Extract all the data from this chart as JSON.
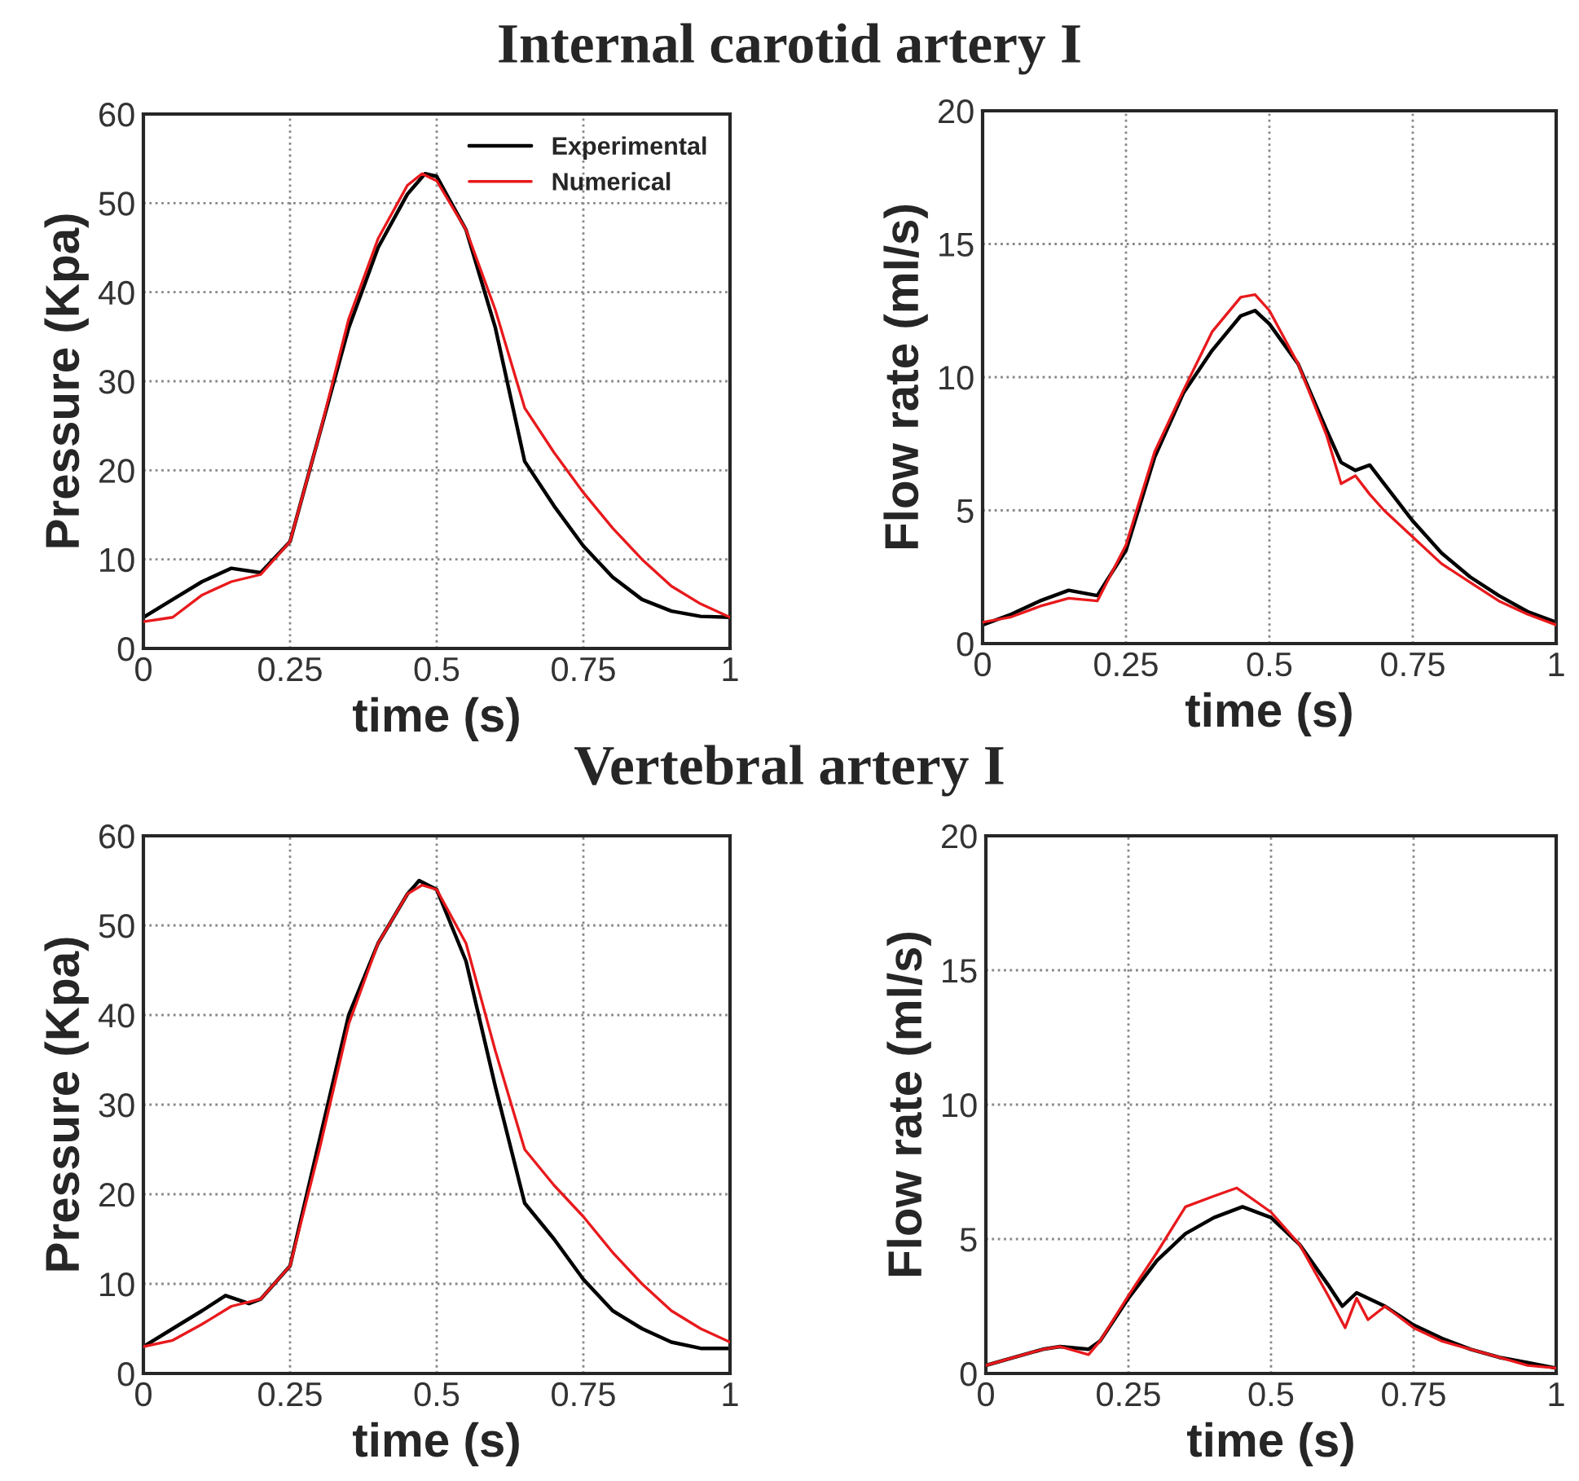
{
  "chart_data": [
    {
      "type": "line",
      "title": "Internal carotid artery I",
      "xlabel": "time (s)",
      "ylabel": "Pressure (Kpa)",
      "xlim": [
        0,
        1
      ],
      "xticks": [
        0,
        0.25,
        0.5,
        0.75,
        1
      ],
      "ylim": [
        0,
        60
      ],
      "yticks": [
        0,
        10,
        20,
        30,
        40,
        50,
        60
      ],
      "grid": true,
      "legend": "top right",
      "line_style": "solid",
      "series": [
        {
          "name": "Experimental",
          "color": "#000000",
          "x": [
            0,
            0.05,
            0.1,
            0.15,
            0.2,
            0.25,
            0.3,
            0.35,
            0.4,
            0.45,
            0.48,
            0.5,
            0.55,
            0.6,
            0.65,
            0.7,
            0.75,
            0.8,
            0.85,
            0.9,
            0.95,
            1
          ],
          "values": [
            3.5,
            5.5,
            7.5,
            9,
            8.5,
            12,
            24,
            36,
            45,
            51,
            53.3,
            53,
            47,
            36,
            21,
            16,
            11.5,
            8,
            5.5,
            4.2,
            3.6,
            3.5
          ]
        },
        {
          "name": "Numerical",
          "color": "#e8191c",
          "x": [
            0,
            0.05,
            0.1,
            0.15,
            0.2,
            0.25,
            0.3,
            0.35,
            0.4,
            0.45,
            0.475,
            0.5,
            0.55,
            0.6,
            0.65,
            0.7,
            0.75,
            0.8,
            0.85,
            0.9,
            0.95,
            1
          ],
          "values": [
            3,
            3.5,
            6,
            7.5,
            8.3,
            12,
            24,
            37,
            46,
            52,
            53.3,
            52.5,
            47,
            38,
            27,
            22,
            17.5,
            13.5,
            10,
            7,
            5,
            3.5
          ]
        }
      ]
    },
    {
      "type": "line",
      "xlabel": "time (s)",
      "ylabel": "Flow rate (ml/s)",
      "xlim": [
        0,
        1
      ],
      "xticks": [
        0,
        0.25,
        0.5,
        0.75,
        1
      ],
      "ylim": [
        0,
        20
      ],
      "yticks": [
        0,
        5,
        10,
        15,
        20
      ],
      "grid": true,
      "line_style": "solid",
      "series": [
        {
          "color": "#000000",
          "x": [
            0,
            0.05,
            0.1,
            0.15,
            0.2,
            0.25,
            0.3,
            0.35,
            0.4,
            0.45,
            0.475,
            0.5,
            0.55,
            0.6,
            0.625,
            0.65,
            0.675,
            0.7,
            0.75,
            0.8,
            0.85,
            0.9,
            0.95,
            1
          ],
          "values": [
            0.7,
            1.1,
            1.6,
            2.0,
            1.8,
            3.5,
            7,
            9.4,
            11,
            12.3,
            12.5,
            12.0,
            10.5,
            8,
            6.8,
            6.5,
            6.7,
            6,
            4.6,
            3.4,
            2.5,
            1.8,
            1.2,
            0.8
          ]
        },
        {
          "color": "#e8191c",
          "x": [
            0,
            0.05,
            0.1,
            0.15,
            0.2,
            0.25,
            0.3,
            0.35,
            0.4,
            0.45,
            0.475,
            0.5,
            0.55,
            0.6,
            0.625,
            0.65,
            0.675,
            0.7,
            0.75,
            0.8,
            0.85,
            0.9,
            0.95,
            1
          ],
          "values": [
            0.8,
            1.0,
            1.4,
            1.7,
            1.6,
            3.7,
            7.2,
            9.5,
            11.7,
            13.0,
            13.1,
            12.5,
            10.5,
            7.8,
            6.0,
            6.3,
            5.6,
            5.0,
            4.0,
            3.0,
            2.3,
            1.6,
            1.1,
            0.7
          ]
        }
      ]
    },
    {
      "type": "line",
      "title": "Vertebral artery I",
      "xlabel": "time (s)",
      "ylabel": "Pressure (Kpa)",
      "xlim": [
        0,
        1
      ],
      "xticks": [
        0,
        0.25,
        0.5,
        0.75,
        1
      ],
      "ylim": [
        0,
        60
      ],
      "yticks": [
        0,
        10,
        20,
        30,
        40,
        50,
        60
      ],
      "grid": true,
      "line_style": "solid",
      "series": [
        {
          "color": "#000000",
          "x": [
            0,
            0.05,
            0.1,
            0.14,
            0.18,
            0.2,
            0.25,
            0.3,
            0.35,
            0.4,
            0.45,
            0.47,
            0.5,
            0.55,
            0.6,
            0.65,
            0.7,
            0.75,
            0.8,
            0.85,
            0.9,
            0.95,
            1
          ],
          "values": [
            3,
            5,
            7,
            8.7,
            7.8,
            8.3,
            12,
            26,
            40,
            48,
            53.5,
            55,
            54,
            46,
            32,
            19,
            15,
            10.5,
            7,
            5,
            3.5,
            2.8,
            2.8
          ]
        },
        {
          "color": "#e8191c",
          "x": [
            0,
            0.05,
            0.1,
            0.15,
            0.2,
            0.25,
            0.3,
            0.35,
            0.4,
            0.45,
            0.475,
            0.5,
            0.55,
            0.6,
            0.65,
            0.7,
            0.75,
            0.8,
            0.85,
            0.9,
            0.95,
            1
          ],
          "values": [
            3,
            3.7,
            5.5,
            7.5,
            8.3,
            12,
            25,
            39,
            48,
            53.5,
            54.5,
            54,
            48,
            36,
            25,
            21,
            17.5,
            13.5,
            10,
            7,
            5,
            3.5
          ]
        }
      ]
    },
    {
      "type": "line",
      "xlabel": "time (s)",
      "ylabel": "Flow rate (ml/s)",
      "xlim": [
        0,
        1
      ],
      "xticks": [
        0,
        0.25,
        0.5,
        0.75,
        1
      ],
      "ylim": [
        0,
        20
      ],
      "yticks": [
        0,
        5,
        10,
        15,
        20
      ],
      "grid": true,
      "line_style": "solid",
      "series": [
        {
          "color": "#000000",
          "x": [
            0,
            0.05,
            0.1,
            0.13,
            0.18,
            0.2,
            0.25,
            0.3,
            0.35,
            0.4,
            0.45,
            0.5,
            0.55,
            0.6,
            0.625,
            0.65,
            0.7,
            0.75,
            0.8,
            0.85,
            0.9,
            0.95,
            1
          ],
          "values": [
            0.3,
            0.6,
            0.9,
            1.0,
            0.9,
            1.2,
            2.8,
            4.2,
            5.2,
            5.8,
            6.2,
            5.8,
            4.8,
            3.3,
            2.5,
            3.0,
            2.5,
            1.8,
            1.3,
            0.9,
            0.6,
            0.4,
            0.2
          ]
        },
        {
          "color": "#e8191c",
          "x": [
            0,
            0.05,
            0.1,
            0.13,
            0.18,
            0.2,
            0.25,
            0.3,
            0.35,
            0.4,
            0.44,
            0.5,
            0.55,
            0.6,
            0.63,
            0.65,
            0.67,
            0.7,
            0.75,
            0.8,
            0.85,
            0.9,
            0.95,
            1
          ],
          "values": [
            0.3,
            0.6,
            0.9,
            1.0,
            0.7,
            1.2,
            2.9,
            4.5,
            6.2,
            6.6,
            6.9,
            6.0,
            4.8,
            2.9,
            1.7,
            2.8,
            2.0,
            2.5,
            1.7,
            1.2,
            0.9,
            0.6,
            0.3,
            0.2
          ]
        }
      ]
    }
  ]
}
